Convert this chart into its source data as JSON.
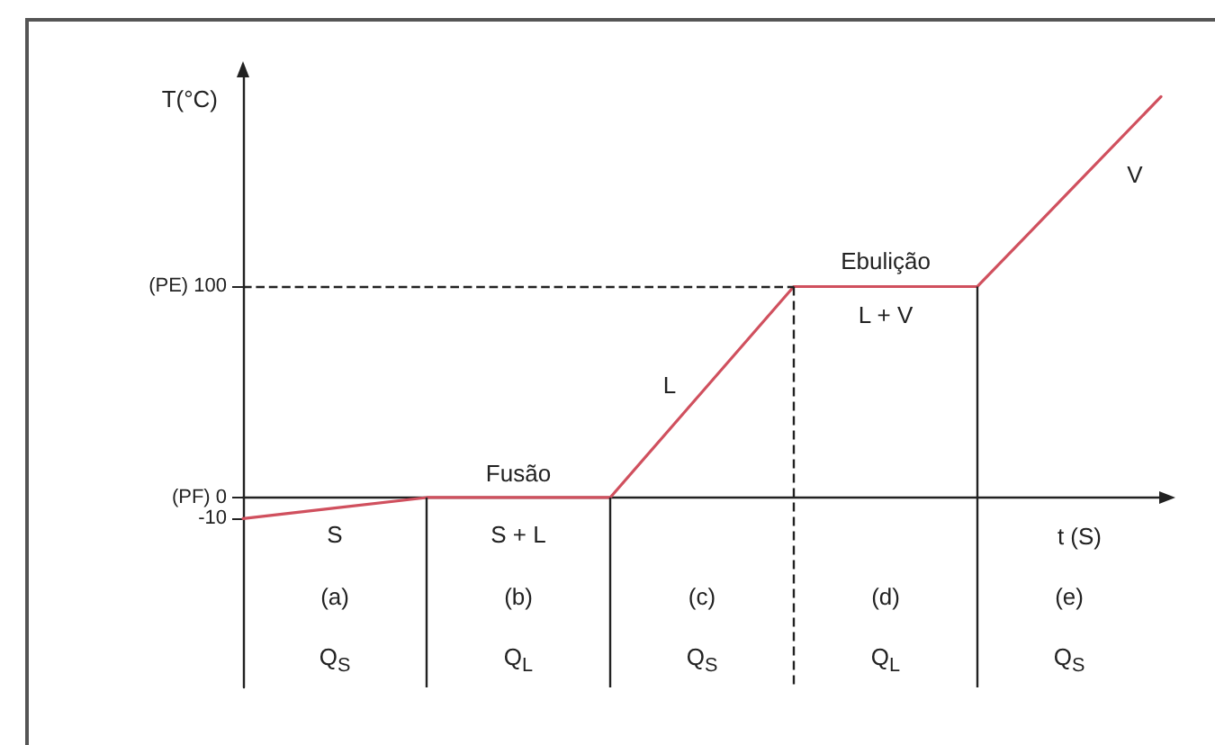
{
  "chart_data": {
    "type": "line",
    "xlabel": "t (S)",
    "ylabel": "T(°C)",
    "categories": [
      null,
      "(a)",
      null,
      "(b)",
      null,
      "(c)",
      null,
      "(d)",
      null,
      "(e)",
      null
    ],
    "values": [
      -10,
      -5,
      0,
      0,
      0,
      50,
      100,
      100,
      100,
      145,
      190
    ],
    "color": "#d0505e",
    "ylim": [
      -90,
      200
    ],
    "yticks": [
      -10,
      {
        "value": 0,
        "label": "(PF) 0"
      },
      {
        "value": 100,
        "label": "(PE) 100"
      }
    ],
    "ref_lines": [
      {
        "axis": "y",
        "value": 100,
        "color": "#222222",
        "line_style": "dashed"
      }
    ],
    "annotations": [
      "S",
      "S + L",
      "Fusão",
      "L",
      "Ebulição",
      "L + V",
      "V",
      "Q$_{S}$",
      "Q$_{L}$",
      "Q$_{S}$",
      "Q$_{L}$",
      "Q$_{S}$"
    ]
  }
}
